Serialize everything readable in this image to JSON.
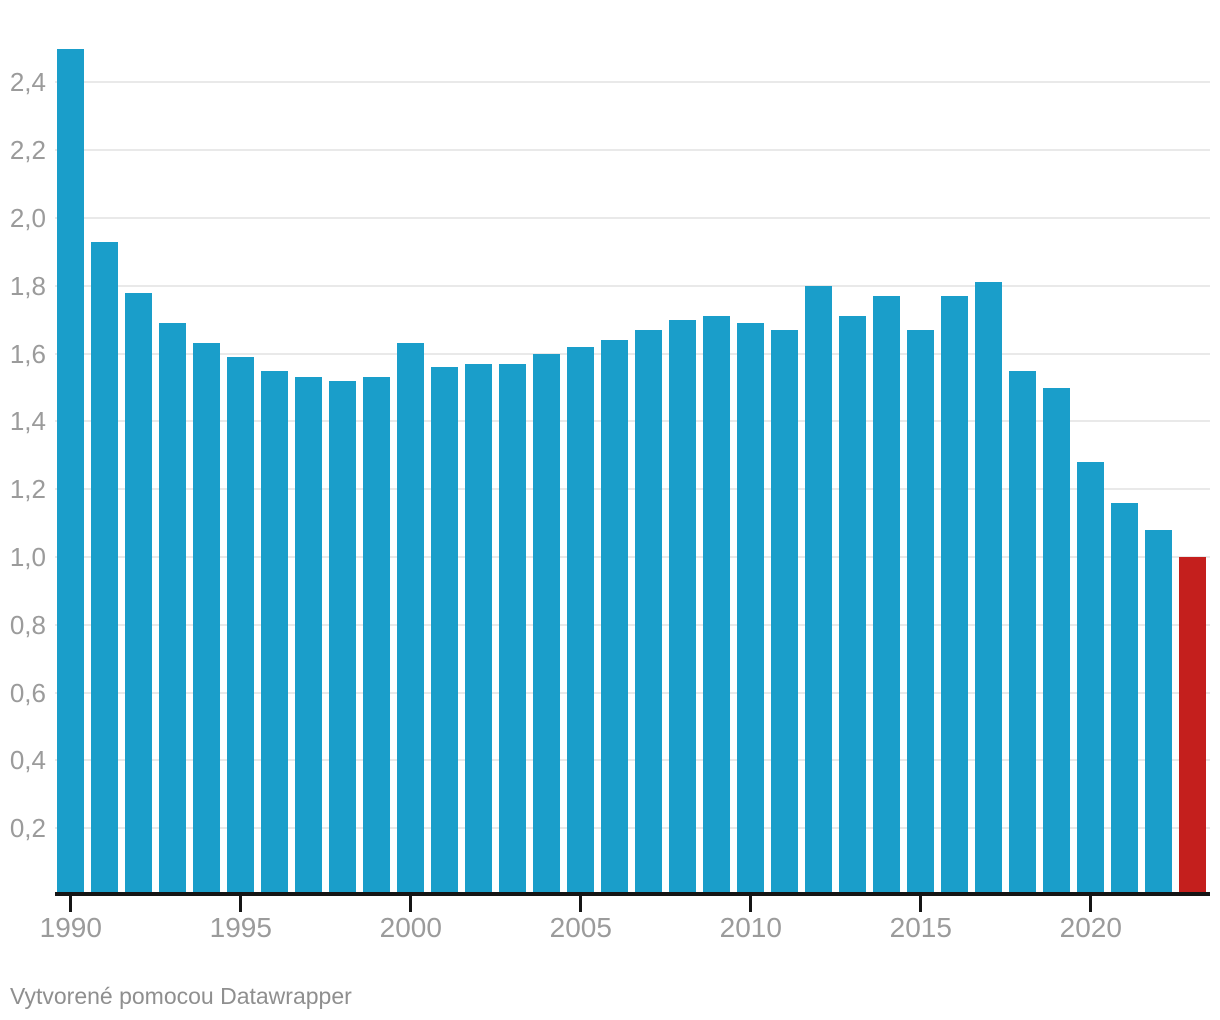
{
  "chart_data": {
    "type": "bar",
    "x": [
      1990,
      1991,
      1992,
      1993,
      1994,
      1995,
      1996,
      1997,
      1998,
      1999,
      2000,
      2001,
      2002,
      2003,
      2004,
      2005,
      2006,
      2007,
      2008,
      2009,
      2010,
      2011,
      2012,
      2013,
      2014,
      2015,
      2016,
      2017,
      2018,
      2019,
      2020,
      2021,
      2022,
      2023
    ],
    "values": [
      2.5,
      1.93,
      1.78,
      1.69,
      1.63,
      1.59,
      1.55,
      1.53,
      1.52,
      1.53,
      1.63,
      1.56,
      1.57,
      1.57,
      1.6,
      1.62,
      1.64,
      1.67,
      1.7,
      1.71,
      1.69,
      1.67,
      1.8,
      1.71,
      1.77,
      1.67,
      1.77,
      1.81,
      1.55,
      1.5,
      1.28,
      1.16,
      1.08,
      1.0
    ],
    "highlight_year": 2023,
    "xlabel": "",
    "ylabel": "",
    "ylim": [
      0,
      2.6
    ],
    "grid": true,
    "legend": "none",
    "decimal_separator": ",",
    "y_ticks": [
      0.2,
      0.4,
      0.6,
      0.8,
      1.0,
      1.2,
      1.4,
      1.6,
      1.8,
      2.0,
      2.2,
      2.4
    ],
    "y_tick_labels": [
      "0,2",
      "0,4",
      "0,6",
      "0,8",
      "1,0",
      "1,2",
      "1,4",
      "1,6",
      "1,8",
      "2,0",
      "2,2",
      "2,4"
    ],
    "x_ticks": [
      1990,
      1995,
      2000,
      2005,
      2010,
      2015,
      2020
    ],
    "colors": {
      "bar": "#1a9eca",
      "highlight": "#c41f1d",
      "grid": "#e9e9e9",
      "axis": "#151515",
      "tick_label": "#9b9b9b",
      "footer_text": "#8f8f8f",
      "background": "#ffffff"
    }
  },
  "footer": {
    "text": "Vytvorené pomocou Datawrapper"
  }
}
